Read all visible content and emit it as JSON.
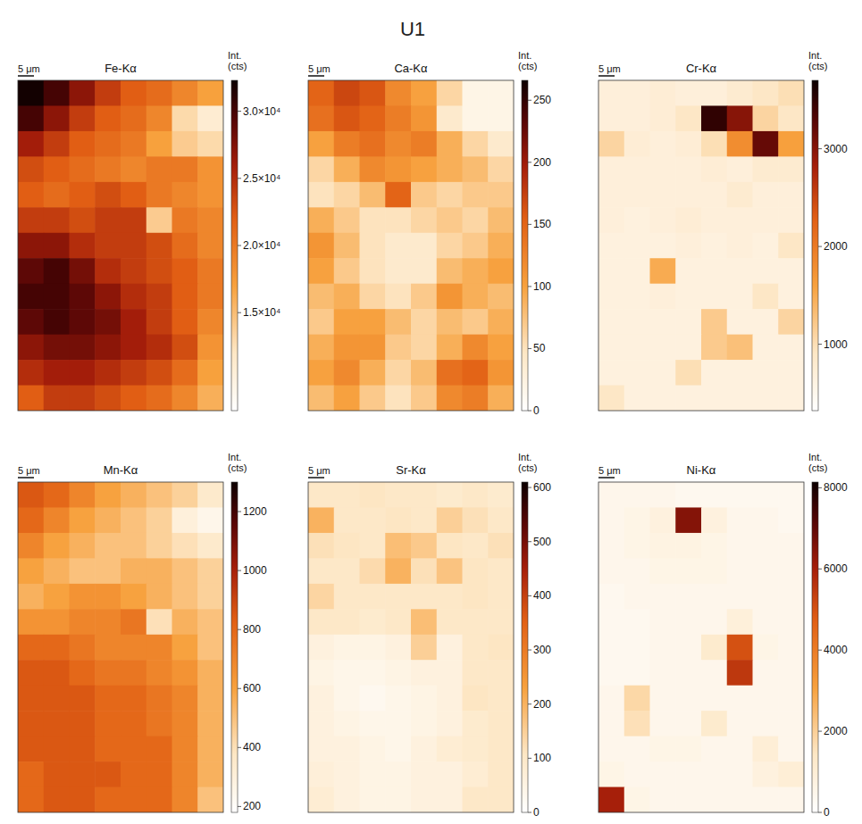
{
  "figure_title": "U1",
  "chart_data": [
    {
      "type": "heatmap",
      "title": "Fe-Kα",
      "scale_bar": "5 μm",
      "colorbar_label": "Int. (cts)",
      "tick_labels": false,
      "colorbar_range": [
        7700,
        32300
      ],
      "colorbar_ticks": [
        {
          "value": 15000,
          "label": "1.5×10⁴"
        },
        {
          "value": 20000,
          "label": "2.0×10⁴"
        },
        {
          "value": 25000,
          "label": "2.5×10⁴"
        },
        {
          "value": 30000,
          "label": "3.0×10⁴"
        }
      ],
      "cells": [
        [
          32000,
          30000,
          27000,
          24000,
          22000,
          21000,
          19000,
          17000
        ],
        [
          30000,
          27000,
          24000,
          22000,
          21000,
          19000,
          13000,
          11000
        ],
        [
          26000,
          24000,
          22000,
          21000,
          20000,
          17000,
          14000,
          13000
        ],
        [
          23000,
          22000,
          21000,
          20000,
          19000,
          20000,
          20000,
          18000
        ],
        [
          22000,
          21000,
          22000,
          23000,
          22000,
          20000,
          19000,
          18000
        ],
        [
          24000,
          24000,
          23000,
          24000,
          24000,
          14000,
          20000,
          19000
        ],
        [
          27000,
          27000,
          25000,
          24000,
          24000,
          23000,
          21000,
          19000
        ],
        [
          29000,
          30000,
          28000,
          25000,
          24000,
          23000,
          22000,
          20000
        ],
        [
          30000,
          30000,
          29000,
          27000,
          25000,
          24000,
          22000,
          20000
        ],
        [
          29000,
          30000,
          29000,
          28000,
          26000,
          24000,
          22000,
          19000
        ],
        [
          27000,
          28000,
          28000,
          27000,
          26000,
          25000,
          23000,
          18000
        ],
        [
          25000,
          26000,
          26000,
          25000,
          24000,
          23000,
          21000,
          17000
        ],
        [
          22000,
          24000,
          24000,
          23000,
          22000,
          21000,
          19000,
          16000
        ]
      ]
    },
    {
      "type": "heatmap",
      "title": "Ca-Kα",
      "scale_bar": "5 μm",
      "colorbar_label": "Int. (cts)",
      "tick_labels": false,
      "colorbar_range": [
        0,
        266
      ],
      "colorbar_ticks": [
        0,
        50,
        100,
        150,
        200,
        250
      ],
      "cells": [
        [
          150,
          170,
          160,
          120,
          100,
          60,
          20,
          20
        ],
        [
          140,
          160,
          150,
          130,
          110,
          40,
          20,
          20
        ],
        [
          100,
          130,
          140,
          120,
          130,
          90,
          60,
          40
        ],
        [
          60,
          90,
          120,
          110,
          100,
          90,
          80,
          60
        ],
        [
          50,
          60,
          80,
          150,
          70,
          60,
          70,
          70
        ],
        [
          90,
          70,
          50,
          50,
          60,
          70,
          60,
          80
        ],
        [
          110,
          80,
          50,
          40,
          40,
          60,
          70,
          90
        ],
        [
          100,
          70,
          50,
          40,
          40,
          80,
          90,
          100
        ],
        [
          80,
          90,
          60,
          50,
          70,
          110,
          90,
          80
        ],
        [
          70,
          100,
          100,
          80,
          60,
          80,
          70,
          90
        ],
        [
          90,
          110,
          110,
          70,
          60,
          90,
          120,
          100
        ],
        [
          100,
          120,
          90,
          60,
          80,
          140,
          150,
          110
        ],
        [
          80,
          100,
          70,
          50,
          70,
          120,
          130,
          90
        ]
      ]
    },
    {
      "type": "heatmap",
      "title": "Cr-Kα",
      "scale_bar": "5 μm",
      "colorbar_label": "Int. (cts)",
      "tick_labels": false,
      "colorbar_range": [
        320,
        3700
      ],
      "colorbar_ticks": [
        1000,
        2000,
        3000
      ],
      "cells": [
        [
          700,
          700,
          750,
          700,
          700,
          800,
          900,
          1000
        ],
        [
          700,
          700,
          750,
          900,
          3500,
          3000,
          1100,
          900
        ],
        [
          1100,
          750,
          700,
          750,
          1000,
          1800,
          3200,
          1600
        ],
        [
          700,
          700,
          700,
          700,
          750,
          700,
          800,
          800
        ],
        [
          700,
          700,
          700,
          700,
          700,
          800,
          700,
          700
        ],
        [
          700,
          650,
          700,
          750,
          700,
          700,
          700,
          700
        ],
        [
          650,
          650,
          650,
          700,
          650,
          700,
          650,
          900
        ],
        [
          650,
          650,
          1500,
          650,
          650,
          650,
          650,
          650
        ],
        [
          650,
          650,
          700,
          650,
          650,
          650,
          900,
          650
        ],
        [
          650,
          650,
          650,
          650,
          1200,
          650,
          650,
          1100
        ],
        [
          650,
          650,
          650,
          650,
          1200,
          1300,
          650,
          650
        ],
        [
          650,
          650,
          650,
          1000,
          650,
          650,
          650,
          650
        ],
        [
          900,
          650,
          650,
          650,
          650,
          650,
          650,
          650
        ]
      ]
    },
    {
      "type": "heatmap",
      "title": "Mn-Kα",
      "scale_bar": "5 μm",
      "colorbar_label": "Int. (cts)",
      "tick_labels": false,
      "colorbar_range": [
        180,
        1300
      ],
      "colorbar_ticks": [
        200,
        400,
        600,
        800,
        1000,
        1200
      ],
      "cells": [
        [
          850,
          800,
          700,
          600,
          550,
          500,
          450,
          350
        ],
        [
          800,
          700,
          600,
          550,
          500,
          450,
          300,
          250
        ],
        [
          700,
          600,
          550,
          500,
          500,
          450,
          400,
          350
        ],
        [
          600,
          550,
          500,
          500,
          550,
          550,
          500,
          450
        ],
        [
          550,
          600,
          650,
          650,
          600,
          550,
          500,
          450
        ],
        [
          650,
          650,
          700,
          700,
          750,
          400,
          550,
          500
        ],
        [
          800,
          800,
          750,
          700,
          700,
          700,
          600,
          500
        ],
        [
          850,
          850,
          800,
          750,
          750,
          700,
          650,
          550
        ],
        [
          850,
          850,
          850,
          800,
          800,
          750,
          700,
          550
        ],
        [
          850,
          850,
          850,
          800,
          800,
          750,
          700,
          550
        ],
        [
          850,
          850,
          850,
          800,
          800,
          800,
          700,
          550
        ],
        [
          800,
          850,
          850,
          850,
          800,
          800,
          700,
          550
        ],
        [
          800,
          850,
          850,
          800,
          800,
          800,
          700,
          500
        ]
      ]
    },
    {
      "type": "heatmap",
      "title": "Sr-Kα",
      "scale_bar": "5 μm",
      "colorbar_label": "Int. (cts)",
      "tick_labels": false,
      "colorbar_range": [
        0,
        610
      ],
      "colorbar_ticks": [
        0,
        100,
        200,
        300,
        400,
        500,
        600
      ],
      "cells": [
        [
          100,
          100,
          110,
          100,
          100,
          90,
          100,
          90
        ],
        [
          200,
          100,
          100,
          110,
          100,
          150,
          120,
          100
        ],
        [
          120,
          110,
          100,
          180,
          160,
          110,
          100,
          120
        ],
        [
          100,
          100,
          130,
          200,
          120,
          170,
          110,
          100
        ],
        [
          140,
          100,
          100,
          100,
          100,
          100,
          110,
          100
        ],
        [
          100,
          100,
          90,
          100,
          180,
          100,
          100,
          100
        ],
        [
          60,
          50,
          50,
          60,
          150,
          60,
          100,
          110
        ],
        [
          50,
          40,
          40,
          50,
          60,
          60,
          100,
          100
        ],
        [
          60,
          40,
          30,
          40,
          50,
          60,
          110,
          100
        ],
        [
          60,
          50,
          40,
          40,
          50,
          60,
          90,
          100
        ],
        [
          60,
          60,
          50,
          40,
          60,
          80,
          90,
          100
        ],
        [
          70,
          60,
          50,
          50,
          60,
          60,
          80,
          100
        ],
        [
          80,
          60,
          50,
          50,
          60,
          60,
          100,
          100
        ]
      ]
    },
    {
      "type": "heatmap",
      "title": "Ni-Kα",
      "scale_bar": "5 μm",
      "colorbar_label": "Int. (cts)",
      "tick_labels": false,
      "colorbar_range": [
        0,
        8140
      ],
      "colorbar_ticks": [
        0,
        2000,
        4000,
        6000,
        8000
      ],
      "cells": [
        [
          500,
          500,
          500,
          400,
          400,
          400,
          400,
          400
        ],
        [
          500,
          600,
          800,
          6500,
          800,
          500,
          500,
          400
        ],
        [
          500,
          600,
          700,
          700,
          600,
          500,
          500,
          500
        ],
        [
          500,
          500,
          600,
          600,
          600,
          500,
          500,
          500
        ],
        [
          400,
          500,
          500,
          500,
          500,
          500,
          500,
          500
        ],
        [
          400,
          400,
          500,
          500,
          500,
          900,
          500,
          500
        ],
        [
          400,
          400,
          500,
          500,
          1200,
          5000,
          600,
          500
        ],
        [
          400,
          400,
          500,
          500,
          500,
          5500,
          500,
          500
        ],
        [
          500,
          1800,
          500,
          500,
          500,
          500,
          500,
          500
        ],
        [
          500,
          1600,
          500,
          500,
          1200,
          500,
          500,
          500
        ],
        [
          500,
          500,
          600,
          600,
          500,
          500,
          1000,
          500
        ],
        [
          600,
          500,
          500,
          500,
          500,
          500,
          800,
          1000
        ],
        [
          6000,
          600,
          500,
          500,
          500,
          500,
          500,
          500
        ]
      ]
    }
  ]
}
